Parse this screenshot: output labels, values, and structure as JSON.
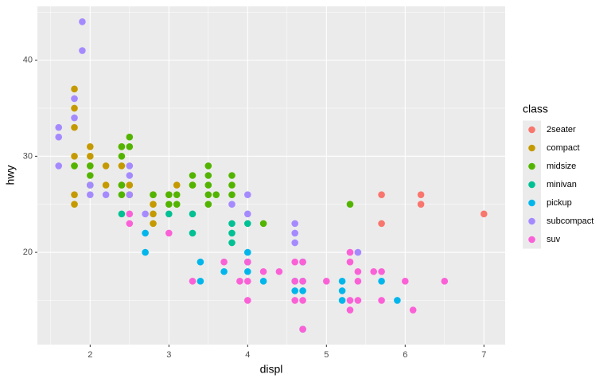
{
  "chart_data": {
    "type": "scatter",
    "x_label": "displ",
    "y_label": "hwy",
    "legend_title": "class",
    "legend_position": "right",
    "grid": true,
    "xlim": [
      1.33,
      7.27
    ],
    "ylim": [
      10.4,
      45.6
    ],
    "xticks": [
      2,
      3,
      4,
      5,
      6,
      7
    ],
    "yticks": [
      20,
      30,
      40
    ],
    "series": [
      {
        "name": "2seater",
        "color": "#F8766D",
        "x": [
          5.7,
          5.7,
          6.2,
          6.2,
          7.0
        ],
        "values": [
          26,
          23,
          26,
          25,
          24
        ]
      },
      {
        "name": "compact",
        "color": "#C49A00",
        "x": [
          1.8,
          1.8,
          1.8,
          1.8,
          1.8,
          1.8,
          1.8,
          2.0,
          2.0,
          2.0,
          2.2,
          2.2,
          2.4,
          2.4,
          2.4,
          2.5,
          2.5,
          2.8,
          2.8,
          2.8,
          2.8,
          3.0,
          3.1,
          3.3
        ],
        "values": [
          37,
          35,
          33,
          30,
          29,
          26,
          25,
          31,
          30,
          29,
          29,
          27,
          31,
          29,
          27,
          27,
          26,
          26,
          25,
          24,
          23,
          26,
          27,
          27
        ]
      },
      {
        "name": "midsize",
        "color": "#53B400",
        "x": [
          1.8,
          2.0,
          2.0,
          2.0,
          2.4,
          2.4,
          2.4,
          2.4,
          2.5,
          2.5,
          2.8,
          3.0,
          3.0,
          3.1,
          3.1,
          3.3,
          3.3,
          3.5,
          3.5,
          3.5,
          3.5,
          3.5,
          3.6,
          3.8,
          3.8,
          3.8,
          4.2,
          5.3
        ],
        "values": [
          29,
          29,
          28,
          27,
          31,
          30,
          27,
          26,
          32,
          31,
          26,
          26,
          25,
          26,
          25,
          28,
          27,
          29,
          28,
          27,
          26,
          25,
          26,
          28,
          27,
          26,
          23,
          25
        ]
      },
      {
        "name": "minivan",
        "color": "#00C094",
        "x": [
          2.4,
          3.0,
          3.3,
          3.3,
          3.8,
          3.8,
          3.8,
          4.0
        ],
        "values": [
          24,
          24,
          24,
          22,
          23,
          22,
          21,
          23
        ]
      },
      {
        "name": "pickup",
        "color": "#00B6EB",
        "x": [
          2.7,
          2.7,
          3.4,
          3.4,
          3.7,
          4.0,
          4.0,
          4.0,
          4.2,
          4.6,
          4.6,
          4.7,
          4.7,
          4.7,
          4.7,
          5.2,
          5.2,
          5.2,
          5.7,
          5.9
        ],
        "values": [
          22,
          20,
          19,
          17,
          18,
          20,
          19,
          18,
          17,
          17,
          16,
          19,
          17,
          16,
          12,
          17,
          16,
          15,
          17,
          15
        ]
      },
      {
        "name": "subcompact",
        "color": "#A58AFF",
        "x": [
          1.6,
          1.6,
          1.6,
          1.8,
          1.8,
          1.9,
          1.9,
          2.0,
          2.0,
          2.2,
          2.5,
          2.5,
          2.5,
          2.7,
          3.8,
          4.0,
          4.0,
          4.6,
          4.6,
          4.6,
          5.4
        ],
        "values": [
          33,
          32,
          29,
          36,
          34,
          44,
          41,
          27,
          26,
          26,
          29,
          28,
          26,
          24,
          25,
          26,
          24,
          23,
          22,
          21,
          20
        ]
      },
      {
        "name": "suv",
        "color": "#FB61D7",
        "x": [
          2.5,
          2.5,
          3.0,
          3.3,
          3.7,
          3.9,
          4.0,
          4.0,
          4.0,
          4.2,
          4.4,
          4.6,
          4.6,
          4.6,
          4.7,
          4.7,
          4.7,
          4.7,
          5.0,
          5.3,
          5.3,
          5.3,
          5.3,
          5.4,
          5.4,
          5.4,
          5.6,
          5.7,
          5.7,
          6.0,
          6.1,
          6.5
        ],
        "values": [
          24,
          23,
          22,
          17,
          19,
          17,
          19,
          17,
          15,
          18,
          18,
          19,
          17,
          15,
          19,
          17,
          15,
          12,
          17,
          20,
          19,
          15,
          14,
          18,
          17,
          15,
          18,
          18,
          15,
          17,
          14,
          17
        ]
      }
    ]
  }
}
